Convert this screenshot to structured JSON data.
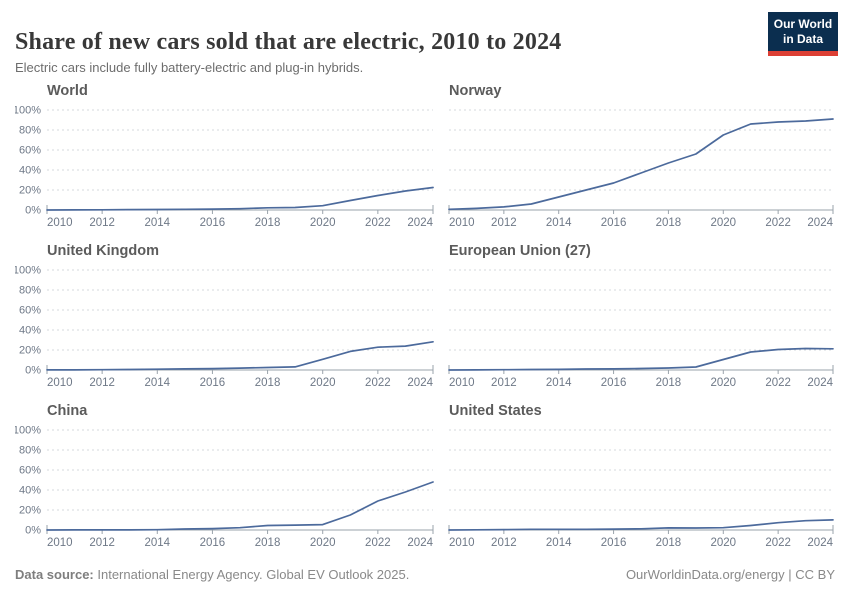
{
  "header": {
    "title": "Share of new cars sold that are electric, 2010 to 2024",
    "subtitle": "Electric cars include fully battery-electric and plug-in hybrids."
  },
  "logo": {
    "line1": "Our World",
    "line2": "in Data",
    "bg_color": "#0b2e4f",
    "accent_color": "#dc3f34"
  },
  "colors": {
    "line": "#4c6a9c",
    "grid": "#d6d9dc",
    "axis": "#9aa3ab",
    "tick_label": "#6e7887",
    "chart_title": "#5b5b5b"
  },
  "footer": {
    "source_label": "Data source:",
    "source_text": " International Energy Agency. Global EV Outlook 2025.",
    "rights": "OurWorldinData.org/energy | CC BY"
  },
  "chart_data": [
    {
      "type": "line",
      "title": "World",
      "x": [
        2010,
        2011,
        2012,
        2013,
        2014,
        2015,
        2016,
        2017,
        2018,
        2019,
        2020,
        2021,
        2022,
        2023,
        2024
      ],
      "values": [
        0.0,
        0.1,
        0.2,
        0.4,
        0.5,
        0.7,
        0.9,
        1.3,
        2.2,
        2.5,
        4.3,
        9.5,
        14.5,
        19,
        22.5
      ],
      "ylim": [
        0,
        100
      ],
      "yticks": [
        0,
        20,
        40,
        60,
        80,
        100
      ],
      "y_tick_labels": [
        "0%",
        "20%",
        "40%",
        "60%",
        "80%",
        "100%"
      ],
      "xticks": [
        2010,
        2012,
        2014,
        2016,
        2018,
        2020,
        2022,
        2024
      ],
      "grid": true,
      "show_y_axis_labels": true
    },
    {
      "type": "line",
      "title": "Norway",
      "x": [
        2010,
        2011,
        2012,
        2013,
        2014,
        2015,
        2016,
        2017,
        2018,
        2019,
        2020,
        2021,
        2022,
        2023,
        2024
      ],
      "values": [
        0.7,
        1.6,
        3.1,
        6,
        13,
        20,
        27,
        37,
        47,
        56,
        75,
        86,
        88,
        89,
        91
      ],
      "ylim": [
        0,
        100
      ],
      "yticks": [
        0,
        20,
        40,
        60,
        80,
        100
      ],
      "y_tick_labels": [
        "0%",
        "20%",
        "40%",
        "60%",
        "80%",
        "100%"
      ],
      "xticks": [
        2010,
        2012,
        2014,
        2016,
        2018,
        2020,
        2022,
        2024
      ],
      "grid": true,
      "show_y_axis_labels": false
    },
    {
      "type": "line",
      "title": "United Kingdom",
      "x": [
        2010,
        2011,
        2012,
        2013,
        2014,
        2015,
        2016,
        2017,
        2018,
        2019,
        2020,
        2021,
        2022,
        2023,
        2024
      ],
      "values": [
        0.1,
        0.1,
        0.3,
        0.5,
        0.8,
        1.1,
        1.4,
        1.9,
        2.5,
        3.1,
        10.7,
        18.6,
        22.8,
        23.9,
        28.2
      ],
      "ylim": [
        0,
        100
      ],
      "yticks": [
        0,
        20,
        40,
        60,
        80,
        100
      ],
      "y_tick_labels": [
        "0%",
        "20%",
        "40%",
        "60%",
        "80%",
        "100%"
      ],
      "xticks": [
        2010,
        2012,
        2014,
        2016,
        2018,
        2020,
        2022,
        2024
      ],
      "grid": true,
      "show_y_axis_labels": true
    },
    {
      "type": "line",
      "title": "European Union (27)",
      "x": [
        2010,
        2011,
        2012,
        2013,
        2014,
        2015,
        2016,
        2017,
        2018,
        2019,
        2020,
        2021,
        2022,
        2023,
        2024
      ],
      "values": [
        0.0,
        0.1,
        0.3,
        0.5,
        0.6,
        1.0,
        1.1,
        1.5,
        2.0,
        3.0,
        10.5,
        18,
        20.5,
        21.5,
        21.2
      ],
      "ylim": [
        0,
        100
      ],
      "yticks": [
        0,
        20,
        40,
        60,
        80,
        100
      ],
      "y_tick_labels": [
        "0%",
        "20%",
        "40%",
        "60%",
        "80%",
        "100%"
      ],
      "xticks": [
        2010,
        2012,
        2014,
        2016,
        2018,
        2020,
        2022,
        2024
      ],
      "grid": true,
      "show_y_axis_labels": false
    },
    {
      "type": "line",
      "title": "China",
      "x": [
        2010,
        2011,
        2012,
        2013,
        2014,
        2015,
        2016,
        2017,
        2018,
        2019,
        2020,
        2021,
        2022,
        2023,
        2024
      ],
      "values": [
        0.0,
        0.1,
        0.1,
        0.1,
        0.3,
        1.0,
        1.4,
        2.3,
        4.5,
        4.9,
        5.4,
        15,
        29,
        38,
        48
      ],
      "ylim": [
        0,
        100
      ],
      "yticks": [
        0,
        20,
        40,
        60,
        80,
        100
      ],
      "y_tick_labels": [
        "0%",
        "20%",
        "40%",
        "60%",
        "80%",
        "100%"
      ],
      "xticks": [
        2010,
        2012,
        2014,
        2016,
        2018,
        2020,
        2022,
        2024
      ],
      "grid": true,
      "show_y_axis_labels": true
    },
    {
      "type": "line",
      "title": "United States",
      "x": [
        2010,
        2011,
        2012,
        2013,
        2014,
        2015,
        2016,
        2017,
        2018,
        2019,
        2020,
        2021,
        2022,
        2023,
        2024
      ],
      "values": [
        0.0,
        0.2,
        0.4,
        0.7,
        0.7,
        0.7,
        0.9,
        1.2,
        2.1,
        2.0,
        2.3,
        4.5,
        7.3,
        9.3,
        10.1
      ],
      "ylim": [
        0,
        100
      ],
      "yticks": [
        0,
        20,
        40,
        60,
        80,
        100
      ],
      "y_tick_labels": [
        "0%",
        "20%",
        "40%",
        "60%",
        "80%",
        "100%"
      ],
      "xticks": [
        2010,
        2012,
        2014,
        2016,
        2018,
        2020,
        2022,
        2024
      ],
      "grid": true,
      "show_y_axis_labels": false
    }
  ]
}
